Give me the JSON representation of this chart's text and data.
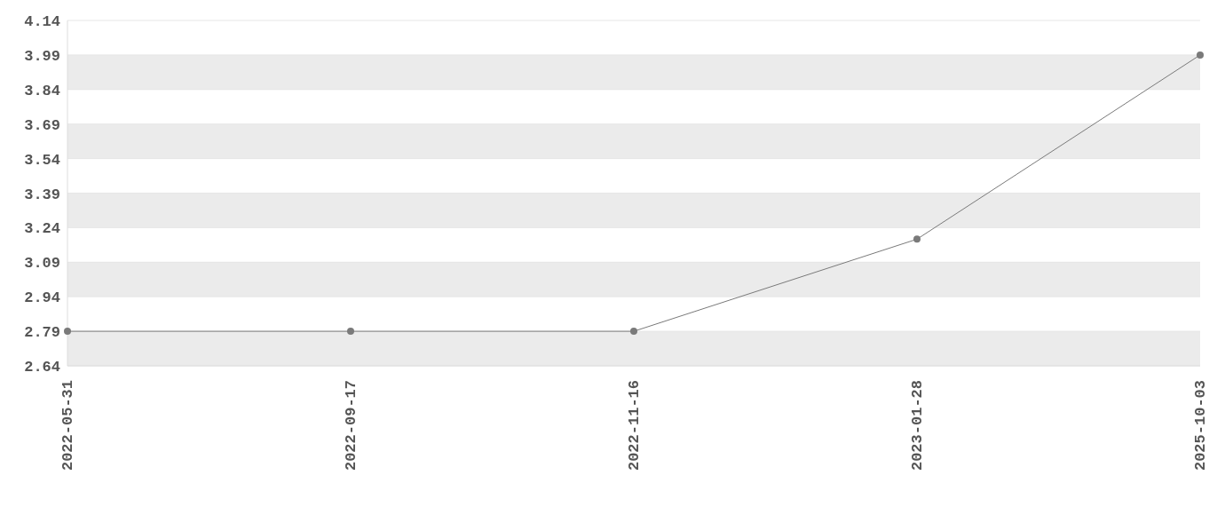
{
  "chart_data": {
    "type": "line",
    "categories": [
      "2022-05-31",
      "2022-09-17",
      "2022-11-16",
      "2023-01-28",
      "2025-10-03"
    ],
    "series": [
      {
        "color": "#7a7a7a",
        "values": [
          2.79,
          2.79,
          2.79,
          3.19,
          3.99
        ]
      }
    ],
    "ylim": [
      2.64,
      4.14
    ],
    "yticks": [
      2.64,
      2.79,
      2.94,
      3.09,
      3.24,
      3.39,
      3.54,
      3.69,
      3.84,
      3.99,
      4.14
    ],
    "grid": "y",
    "marker": "circle",
    "line_style": "solid"
  }
}
